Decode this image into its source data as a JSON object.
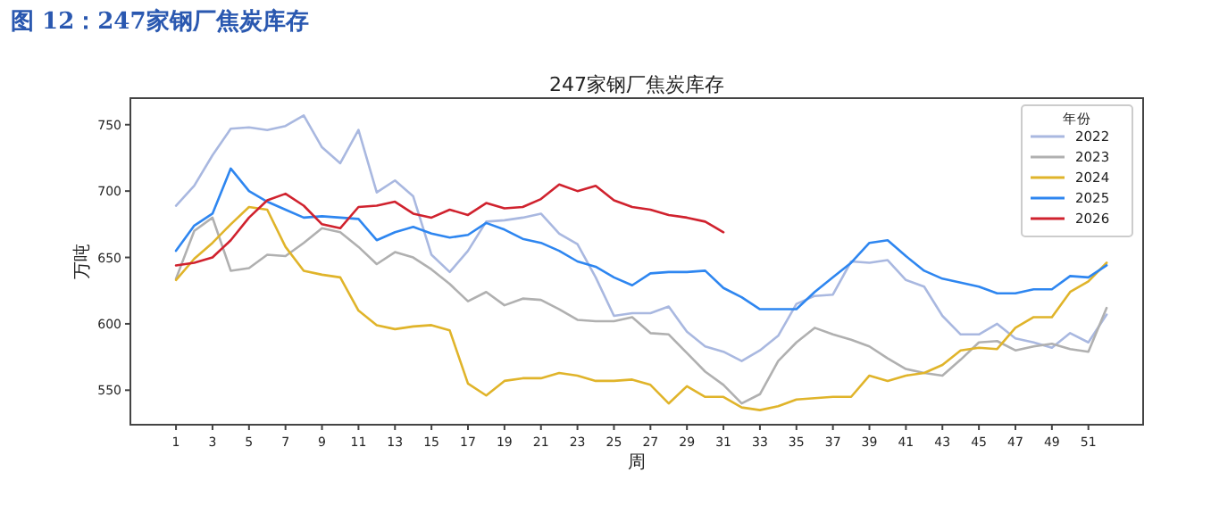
{
  "chart_data": {
    "type": "line",
    "title": "247家钢厂焦炭库存",
    "xlabel": "周",
    "ylabel": "万吨",
    "legend_title": "年份",
    "legend": "top right",
    "annotations": [
      "图 12：247家钢厂焦炭库存"
    ],
    "x": [
      1,
      2,
      3,
      4,
      5,
      6,
      7,
      8,
      9,
      10,
      11,
      12,
      13,
      14,
      15,
      16,
      17,
      18,
      19,
      20,
      21,
      22,
      23,
      24,
      25,
      26,
      27,
      28,
      29,
      30,
      31,
      32,
      33,
      34,
      35,
      36,
      37,
      38,
      39,
      40,
      41,
      42,
      43,
      44,
      45,
      46,
      47,
      48,
      49,
      50,
      51,
      52
    ],
    "xlim": [
      -1.5,
      54
    ],
    "ylim": [
      524,
      770
    ],
    "xticks": [
      1,
      3,
      5,
      7,
      9,
      11,
      13,
      15,
      17,
      19,
      21,
      23,
      25,
      27,
      29,
      31,
      33,
      35,
      37,
      39,
      41,
      43,
      45,
      47,
      49,
      51
    ],
    "yticks": [
      550,
      600,
      650,
      700,
      750
    ],
    "series": [
      {
        "name": "2022",
        "color": "#a9b8e0",
        "values": [
          689,
          704,
          727,
          747,
          748,
          746,
          749,
          757,
          733,
          721,
          746,
          699,
          708,
          696,
          652,
          639,
          655,
          677,
          678,
          680,
          683,
          668,
          660,
          635,
          606,
          608,
          608,
          613,
          594,
          583,
          579,
          572,
          580,
          591,
          615,
          621,
          622,
          647,
          646,
          648,
          633,
          628,
          606,
          592,
          592,
          600,
          589,
          586,
          582,
          593,
          586,
          607
        ]
      },
      {
        "name": "2023",
        "color": "#b0b0b0",
        "values": [
          634,
          670,
          680,
          640,
          642,
          652,
          651,
          661,
          672,
          669,
          658,
          645,
          654,
          650,
          641,
          630,
          617,
          624,
          614,
          619,
          618,
          611,
          603,
          602,
          602,
          605,
          593,
          592,
          578,
          564,
          554,
          540,
          547,
          572,
          586,
          597,
          592,
          588,
          583,
          574,
          566,
          563,
          561,
          573,
          586,
          587,
          580,
          583,
          585,
          581,
          579,
          612
        ]
      },
      {
        "name": "2024",
        "color": "#e0b42a",
        "values": [
          633,
          649,
          661,
          675,
          688,
          686,
          658,
          640,
          637,
          635,
          610,
          599,
          596,
          598,
          599,
          595,
          555,
          546,
          557,
          559,
          559,
          563,
          561,
          557,
          557,
          558,
          554,
          540,
          553,
          545,
          545,
          537,
          535,
          538,
          543,
          544,
          545,
          545,
          561,
          557,
          561,
          563,
          569,
          580,
          582,
          581,
          597,
          605,
          605,
          624,
          632,
          646
        ]
      },
      {
        "name": "2025",
        "color": "#2e86f0",
        "values": [
          655,
          674,
          683,
          717,
          700,
          692,
          686,
          680,
          681,
          680,
          679,
          663,
          669,
          673,
          668,
          665,
          667,
          676,
          671,
          664,
          661,
          655,
          647,
          643,
          635,
          629,
          638,
          639,
          639,
          640,
          627,
          620,
          611,
          611,
          611,
          624,
          635,
          646,
          661,
          663,
          651,
          640,
          634,
          631,
          628,
          623,
          623,
          626,
          626,
          636,
          635,
          644
        ]
      },
      {
        "name": "2026",
        "color": "#d0222e",
        "x": [
          1,
          2,
          3,
          4,
          5,
          6,
          7,
          8,
          9,
          10,
          11,
          12,
          13,
          14,
          15,
          16,
          17,
          18,
          19,
          20,
          21,
          22,
          23,
          24,
          25,
          26,
          27,
          28,
          29,
          30,
          31
        ],
        "values": [
          644,
          646,
          650,
          663,
          680,
          693,
          698,
          689,
          675,
          672,
          688,
          689,
          692,
          683,
          680,
          686,
          682,
          691,
          687,
          688,
          694,
          705,
          700,
          704,
          693,
          688,
          686,
          682,
          680,
          677,
          669
        ]
      }
    ]
  }
}
